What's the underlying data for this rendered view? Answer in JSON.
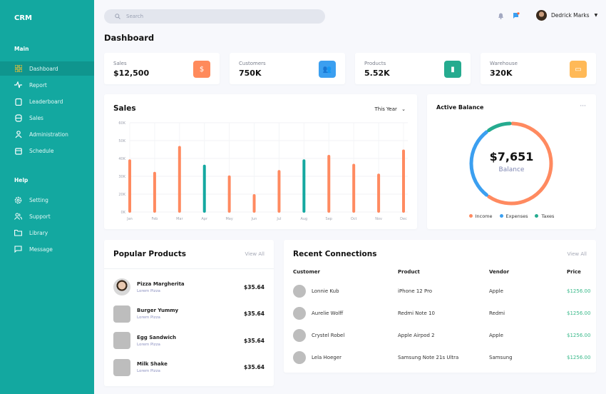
{
  "sidebar": {
    "logo": "CRM",
    "main_label": "Main",
    "help_label": "Help",
    "main_items": [
      {
        "label": "Dashboard",
        "icon": "grid-icon",
        "active": true
      },
      {
        "label": "Report",
        "icon": "activity-icon"
      },
      {
        "label": "Leaderboard",
        "icon": "clipboard-icon"
      },
      {
        "label": "Sales",
        "icon": "database-icon"
      },
      {
        "label": "Administration",
        "icon": "user-icon"
      },
      {
        "label": "Schedule",
        "icon": "calendar-icon"
      }
    ],
    "help_items": [
      {
        "label": "Setting",
        "icon": "gear-icon"
      },
      {
        "label": "Support",
        "icon": "users-icon"
      },
      {
        "label": "Library",
        "icon": "folder-icon"
      },
      {
        "label": "Message",
        "icon": "message-icon"
      }
    ]
  },
  "header": {
    "search_placeholder": "Search",
    "user_name": "Dedrick Marks"
  },
  "page_title": "Dashboard",
  "stats": [
    {
      "label": "Sales",
      "value": "$12,500",
      "icon": "dollar-icon",
      "color": "#ff8a5b"
    },
    {
      "label": "Customers",
      "value": "750K",
      "icon": "users-icon",
      "color": "#3b9ff0"
    },
    {
      "label": "Products",
      "value": "5.52K",
      "icon": "bag-icon",
      "color": "#25ab8f"
    },
    {
      "label": "Warehouse",
      "value": "320K",
      "icon": "store-icon",
      "color": "#ffb957"
    }
  ],
  "sales_card": {
    "title": "Sales",
    "period": "This Year"
  },
  "chart_data": [
    {
      "type": "bar",
      "title": "Sales",
      "categories": [
        "Jan",
        "Feb",
        "Mar",
        "Apr",
        "May",
        "Jun",
        "Jul",
        "Aug",
        "Sep",
        "Oct",
        "Nov",
        "Dec"
      ],
      "values": [
        39.5,
        32.5,
        47,
        36.5,
        30.5,
        20,
        33.5,
        39.5,
        42,
        37,
        31.5,
        45
      ],
      "unit": "K",
      "highlight": [
        "Apr",
        "Aug"
      ],
      "colors": {
        "default": "#ff8a60",
        "highlight": "#14a8a0"
      },
      "yticks": [
        "0K",
        "20K",
        "30K",
        "40K",
        "50K",
        "60K"
      ],
      "ytick_values": [
        0,
        20,
        30,
        40,
        50,
        60
      ],
      "ylim": [
        0,
        60
      ],
      "grid": true
    },
    {
      "type": "pie",
      "donut": true,
      "title": "Active Balance",
      "center_value": "$7,651",
      "center_label": "Balance",
      "series": [
        {
          "name": "Income",
          "value": 60,
          "color": "#ff8a60"
        },
        {
          "name": "Expenses",
          "value": 30,
          "color": "#3b9ff0"
        },
        {
          "name": "Taxes",
          "value": 10,
          "color": "#25ab8f"
        }
      ],
      "legend": "bottom"
    }
  ],
  "popular": {
    "title": "Popular Products",
    "view_all": "View All",
    "items": [
      {
        "name": "Pizza Margherita",
        "sub": "Lorem Pizza",
        "price": "$35.64"
      },
      {
        "name": "Burger Yummy",
        "sub": "Lorem Pizza",
        "price": "$35.64"
      },
      {
        "name": "Egg Sandwich",
        "sub": "Lorem Pizza",
        "price": "$35.64"
      },
      {
        "name": "Milk Shake",
        "sub": "Lorem Pizza",
        "price": "$35.64"
      }
    ]
  },
  "connections": {
    "title": "Recent Connections",
    "view_all": "View All",
    "columns": [
      "Customer",
      "Product",
      "Vendor",
      "Price"
    ],
    "rows": [
      [
        "Lonnie Kub",
        "iPhone 12 Pro",
        "Apple",
        "$1256.00"
      ],
      [
        "Aurelie Wolff",
        "Redmi Note 10",
        "Redmi",
        "$1256.00"
      ],
      [
        "Crystel Robel",
        "Apple Airpod 2",
        "Apple",
        "$1256.00"
      ],
      [
        "Lela Hoeger",
        "Samsung Note 21s Ultra",
        "Samsung",
        "$1256.00"
      ]
    ]
  }
}
